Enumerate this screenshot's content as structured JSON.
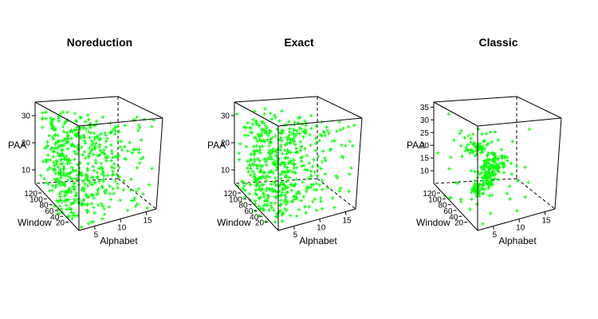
{
  "figure": {
    "point_color": "#00ff00",
    "axis_color": "#000000"
  },
  "chart_data": [
    {
      "type": "scatter",
      "title": "Noreduction",
      "xlabel": "Alphabet",
      "ylabel": "Window",
      "zlabel": "PAA",
      "x_ticks": [
        "5",
        "10",
        "15"
      ],
      "y_ticks": [
        "20",
        "40",
        "60",
        "80",
        "100",
        "120"
      ],
      "z_ticks": [
        "10",
        "20",
        "30"
      ],
      "xlim": [
        2,
        17
      ],
      "ylim": [
        20,
        120
      ],
      "zlim": [
        5,
        35
      ],
      "distribution": "uniform-full"
    },
    {
      "type": "scatter",
      "title": "Exact",
      "xlabel": "Alphabet",
      "ylabel": "Window",
      "zlabel": "PAA",
      "x_ticks": [
        "5",
        "10",
        "15"
      ],
      "y_ticks": [
        "20",
        "40",
        "60",
        "80",
        "100",
        "120"
      ],
      "z_ticks": [
        "10",
        "20",
        "30"
      ],
      "xlim": [
        2,
        17
      ],
      "ylim": [
        20,
        120
      ],
      "zlim": [
        5,
        35
      ],
      "distribution": "uniform-full"
    },
    {
      "type": "scatter",
      "title": "Classic",
      "xlabel": "Alphabet",
      "ylabel": "Window",
      "zlabel": "PAA",
      "x_ticks": [
        "5",
        "10",
        "15"
      ],
      "y_ticks": [
        "20",
        "40",
        "60",
        "80",
        "100",
        "120"
      ],
      "z_ticks": [
        "10",
        "15",
        "20",
        "25",
        "30",
        "35"
      ],
      "xlim": [
        2,
        17
      ],
      "ylim": [
        20,
        120
      ],
      "zlim": [
        5,
        37
      ],
      "distribution": "clustered"
    }
  ]
}
